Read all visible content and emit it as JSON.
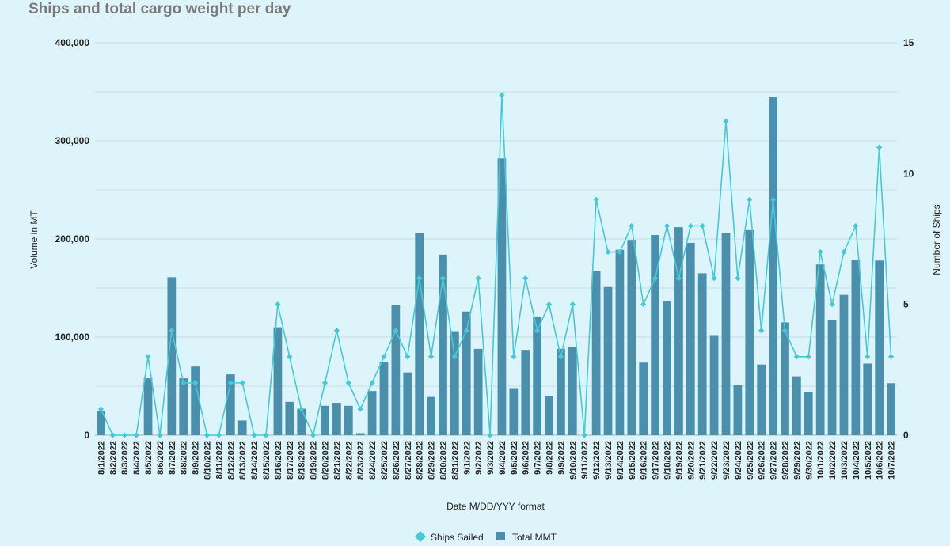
{
  "chart_data": {
    "type": "bar",
    "title": "Ships and total cargo weight per day",
    "xlabel": "Date M/DD/YYY format",
    "ylabel": "Volume in MT",
    "y2label": "Number of Ships",
    "ylim": [
      0,
      400000
    ],
    "y2lim": [
      0,
      15
    ],
    "yticks": [
      0,
      100000,
      200000,
      300000,
      400000
    ],
    "yticklabels": [
      "0",
      "100,000",
      "200,000",
      "300,000",
      "400,000"
    ],
    "y2ticks": [
      0,
      5,
      10,
      15
    ],
    "y2ticklabels": [
      "0",
      "5",
      "10",
      "15"
    ],
    "grid": true,
    "legend": "bottom",
    "colors": {
      "bar": "#4a8fab",
      "line": "#45c9d6",
      "grid": "#c3dde3",
      "background": "#ddf5fa"
    },
    "categories": [
      "8/1/2022",
      "8/2/2022",
      "8/3/2022",
      "8/4/2022",
      "8/5/2022",
      "8/6/2022",
      "8/7/2022",
      "8/8/2022",
      "8/9/2022",
      "8/10/2022",
      "8/11/2022",
      "8/12/2022",
      "8/13/2022",
      "8/14/2022",
      "8/15/2022",
      "8/16/2022",
      "8/17/2022",
      "8/18/2022",
      "8/19/2022",
      "8/20/2022",
      "8/21/2022",
      "8/22/2022",
      "8/23/2022",
      "8/24/2022",
      "8/25/2022",
      "8/26/2022",
      "8/27/2022",
      "8/28/2022",
      "8/29/2022",
      "8/30/2022",
      "8/31/2022",
      "9/1/2022",
      "9/2/2022",
      "9/3/2022",
      "9/4/2022",
      "9/5/2022",
      "9/6/2022",
      "9/7/2022",
      "9/8/2022",
      "9/9/2022",
      "9/10/2022",
      "9/11/2022",
      "9/12/2022",
      "9/13/2022",
      "9/14/2022",
      "9/15/2022",
      "9/16/2022",
      "9/17/2022",
      "9/18/2022",
      "9/19/2022",
      "9/20/2022",
      "9/21/2022",
      "9/22/2022",
      "9/23/2022",
      "9/24/2022",
      "9/25/2022",
      "9/26/2022",
      "9/27/2022",
      "9/28/2022",
      "9/29/2022",
      "9/30/2022",
      "10/1/2022",
      "10/2/2022",
      "10/3/2022",
      "10/4/2022",
      "10/5/2022",
      "10/6/2022",
      "10/7/2022"
    ],
    "series": [
      {
        "name": "Total MMT",
        "type": "bar",
        "axis": "left",
        "values": [
          25000,
          0,
          0,
          0,
          58000,
          0,
          161000,
          58000,
          70000,
          0,
          0,
          62000,
          15000,
          0,
          0,
          110000,
          34000,
          27000,
          0,
          30000,
          33000,
          30000,
          2000,
          45000,
          75000,
          133000,
          64000,
          206000,
          39000,
          184000,
          106000,
          126000,
          88000,
          0,
          282000,
          48000,
          87000,
          121000,
          40000,
          88000,
          90000,
          0,
          167000,
          151000,
          189000,
          199000,
          74000,
          204000,
          137000,
          212000,
          196000,
          165000,
          102000,
          206000,
          51000,
          209000,
          72000,
          345000,
          115000,
          60000,
          44000,
          174000,
          117000,
          143000,
          179000,
          73000,
          178000,
          53000
        ]
      },
      {
        "name": "Ships Sailed",
        "type": "line",
        "axis": "right",
        "values": [
          1,
          0,
          0,
          0,
          3,
          0,
          4,
          2,
          2,
          0,
          0,
          2,
          2,
          0,
          0,
          5,
          3,
          1,
          0,
          2,
          4,
          2,
          1,
          2,
          3,
          4,
          3,
          6,
          3,
          6,
          3,
          4,
          6,
          0,
          13,
          3,
          6,
          4,
          5,
          3,
          5,
          0,
          9,
          7,
          7,
          8,
          5,
          6,
          8,
          6,
          8,
          8,
          6,
          12,
          6,
          9,
          4,
          9,
          4,
          3,
          3,
          7,
          5,
          7,
          8,
          3,
          11,
          3
        ]
      }
    ]
  }
}
